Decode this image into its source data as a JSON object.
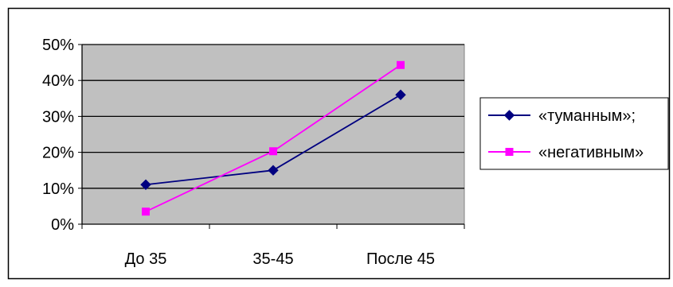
{
  "chart_data": {
    "type": "line",
    "categories": [
      "До 35",
      "35-45",
      "После 45"
    ],
    "series": [
      {
        "name": "«туманным»;",
        "values": [
          0.11,
          0.15,
          0.36
        ],
        "color": "#000080",
        "marker": "diamond"
      },
      {
        "name": "«негативным»",
        "values": [
          0.035,
          0.203,
          0.443
        ],
        "color": "#ff00ff",
        "marker": "square"
      }
    ],
    "y_ticks": [
      "0%",
      "10%",
      "20%",
      "30%",
      "40%",
      "50%"
    ],
    "ylim": [
      0,
      0.5
    ],
    "grid": true,
    "legend_position": "right",
    "plot_background": "#c0c0c0"
  }
}
